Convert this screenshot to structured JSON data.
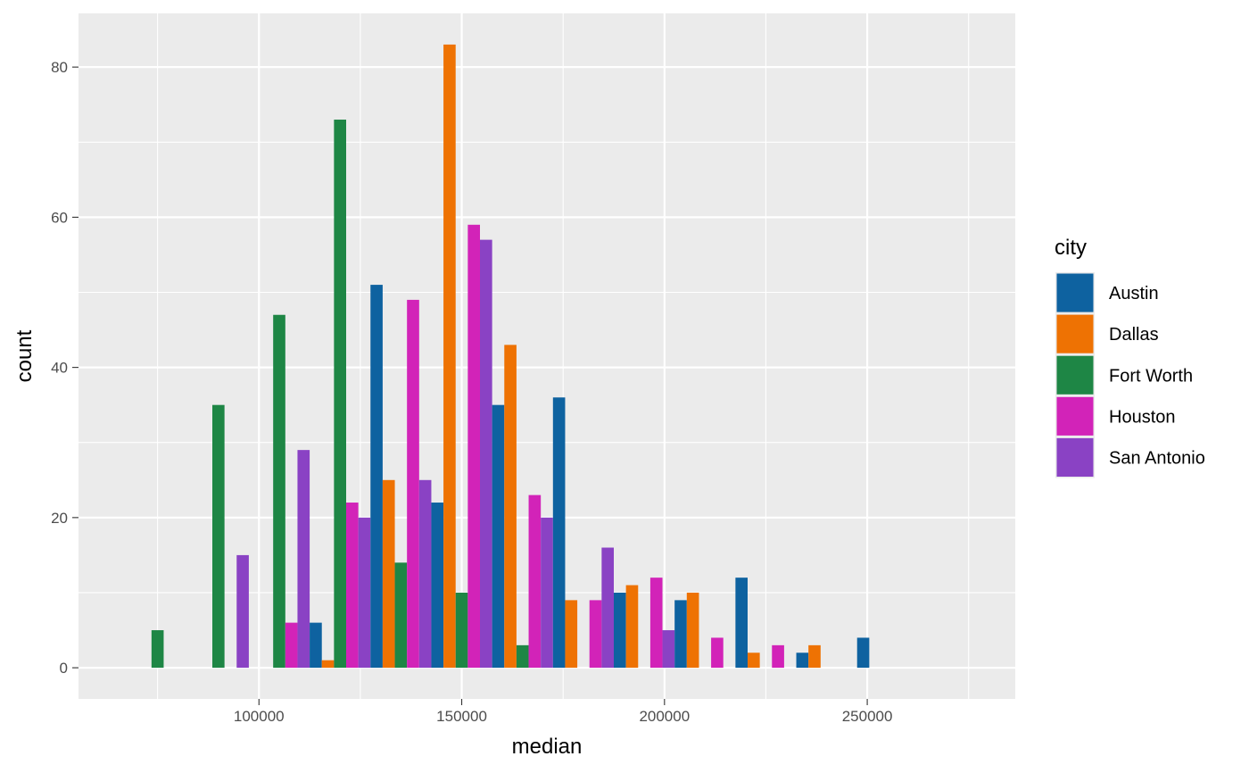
{
  "chart_data": {
    "type": "bar",
    "title": "",
    "xlabel": "median",
    "ylabel": "count",
    "xlim": [
      55500,
      286500
    ],
    "ylim": [
      -4.15,
      87.15
    ],
    "grid": true,
    "bin_width": 15000,
    "x_ticks": [
      100000,
      150000,
      200000,
      250000
    ],
    "x_tick_labels": [
      "100000",
      "150000",
      "200000",
      "250000"
    ],
    "y_ticks": [
      0,
      20,
      40,
      60,
      80
    ],
    "y_tick_labels": [
      "0",
      "20",
      "40",
      "60",
      "80"
    ],
    "legend": {
      "title": "city",
      "position": "right"
    },
    "x": [
      75000,
      90000,
      105000,
      120000,
      135000,
      150000,
      165000,
      180000,
      195000,
      210000,
      225000,
      240000,
      255000,
      270000
    ],
    "series": [
      {
        "name": "Austin",
        "color": "#0E62A0",
        "values": [
          0,
          0,
          0,
          6,
          51,
          22,
          35,
          36,
          10,
          9,
          12,
          2,
          4,
          0
        ]
      },
      {
        "name": "Dallas",
        "color": "#EE7203",
        "values": [
          0,
          0,
          0,
          1,
          25,
          83,
          43,
          9,
          11,
          10,
          2,
          3,
          0,
          0
        ]
      },
      {
        "name": "Fort Worth",
        "color": "#1E8645",
        "values": [
          5,
          35,
          47,
          73,
          14,
          10,
          3,
          0,
          0,
          0,
          0,
          0,
          0,
          0
        ]
      },
      {
        "name": "Houston",
        "color": "#D223B8",
        "values": [
          0,
          0,
          6,
          22,
          49,
          59,
          23,
          9,
          12,
          4,
          3,
          0,
          0,
          0
        ]
      },
      {
        "name": "San Antonio",
        "color": "#8A42C4",
        "values": [
          0,
          15,
          29,
          20,
          25,
          57,
          20,
          16,
          5,
          0,
          0,
          0,
          0,
          0
        ]
      }
    ]
  }
}
